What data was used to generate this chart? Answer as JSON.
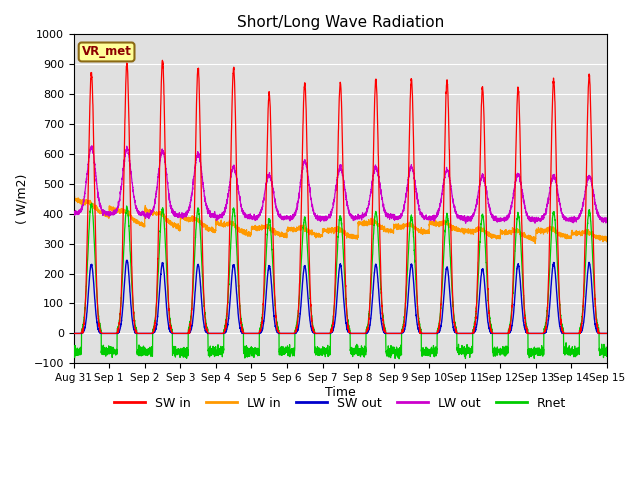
{
  "title": "Short/Long Wave Radiation",
  "xlabel": "Time",
  "ylabel": "( W/m2)",
  "ylim": [
    -100,
    1000
  ],
  "yticks": [
    -100,
    0,
    100,
    200,
    300,
    400,
    500,
    600,
    700,
    800,
    900,
    1000
  ],
  "xtick_labels": [
    "Aug 31",
    "Sep 1",
    "Sep 2",
    "Sep 3",
    "Sep 4",
    "Sep 5",
    "Sep 6",
    "Sep 7",
    "Sep 8",
    "Sep 9",
    "Sep 10",
    "Sep 11",
    "Sep 12",
    "Sep 13",
    "Sep 14",
    "Sep 15"
  ],
  "colors": {
    "SW_in": "#ff0000",
    "LW_in": "#ff9900",
    "SW_out": "#0000cc",
    "LW_out": "#cc00cc",
    "Rnet": "#00cc00"
  },
  "legend_labels": [
    "SW in",
    "LW in",
    "SW out",
    "LW out",
    "Rnet"
  ],
  "station_label": "VR_met",
  "background_color": "#e0e0e0",
  "SW_in_peaks": [
    870,
    900,
    910,
    885,
    885,
    800,
    835,
    835,
    845,
    845,
    840,
    820,
    820,
    845,
    860
  ],
  "LW_in_start": [
    450,
    420,
    415,
    390,
    370,
    355,
    350,
    345,
    370,
    360,
    370,
    345,
    340,
    345,
    335
  ],
  "LW_in_end": [
    390,
    360,
    350,
    340,
    330,
    325,
    325,
    320,
    340,
    335,
    340,
    320,
    315,
    320,
    315
  ],
  "SW_out_peaks": [
    230,
    245,
    235,
    230,
    230,
    225,
    225,
    230,
    230,
    230,
    220,
    215,
    230,
    235,
    235
  ],
  "LW_out_night": [
    400,
    400,
    395,
    395,
    390,
    385,
    385,
    385,
    390,
    385,
    385,
    380,
    380,
    380,
    380
  ],
  "LW_out_peaks": [
    620,
    615,
    610,
    600,
    555,
    530,
    575,
    555,
    555,
    555,
    545,
    525,
    530,
    525,
    525
  ],
  "Rnet_peaks": [
    430,
    420,
    415,
    415,
    415,
    380,
    385,
    390,
    405,
    390,
    395,
    395,
    400,
    405,
    410
  ],
  "Rnet_night": -60,
  "n_days": 15,
  "pts_per_day": 288
}
